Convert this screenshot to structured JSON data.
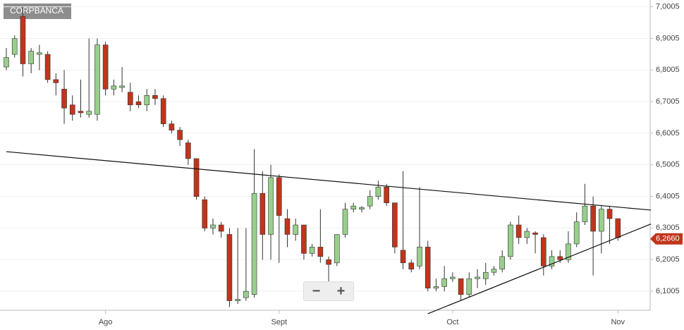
{
  "chart_data": {
    "type": "candlestick",
    "title": "CORPBANCA",
    "categories": [
      null,
      null,
      null,
      null,
      null,
      null,
      null,
      null,
      null,
      null,
      null,
      null,
      "Ago",
      null,
      null,
      null,
      null,
      null,
      null,
      null,
      null,
      null,
      null,
      null,
      null,
      null,
      null,
      null,
      null,
      null,
      null,
      null,
      null,
      "Sept",
      null,
      null,
      null,
      null,
      null,
      null,
      null,
      null,
      null,
      null,
      null,
      null,
      null,
      null,
      null,
      null,
      null,
      null,
      null,
      null,
      "Oct",
      null,
      null,
      null,
      null,
      null,
      null,
      null,
      null,
      null,
      null,
      null,
      null,
      null,
      null,
      null,
      null,
      null,
      null,
      null,
      "Nov"
    ],
    "open": [
      6.81,
      6.85,
      6.97,
      6.82,
      6.85,
      6.85,
      6.77,
      6.74,
      6.69,
      6.67,
      6.66,
      6.66,
      6.88,
      6.74,
      6.745,
      6.73,
      6.7,
      6.69,
      6.72,
      6.71,
      6.63,
      6.61,
      6.57,
      6.52,
      6.39,
      6.3,
      6.31,
      6.28,
      6.07,
      6.08,
      6.09,
      6.41,
      6.28,
      6.46,
      6.33,
      6.28,
      6.31,
      6.22,
      6.24,
      6.2,
      6.19,
      6.28,
      6.36,
      6.36,
      6.37,
      6.4,
      6.43,
      6.38,
      6.23,
      6.19,
      6.18,
      6.24,
      6.11,
      6.115,
      6.14,
      6.14,
      6.09,
      6.14,
      6.14,
      6.16,
      6.17,
      6.21,
      6.31,
      6.27,
      6.285,
      6.27,
      6.18,
      6.21,
      6.2,
      6.25,
      6.32,
      6.37,
      6.29,
      6.36,
      6.33
    ],
    "high": [
      6.87,
      6.91,
      7.0,
      6.87,
      6.88,
      6.86,
      6.79,
      6.8,
      6.72,
      6.77,
      6.9,
      6.9,
      6.89,
      6.77,
      6.81,
      6.76,
      6.72,
      6.74,
      6.74,
      6.72,
      6.64,
      6.62,
      6.58,
      6.52,
      6.4,
      6.33,
      6.32,
      6.3,
      6.3,
      6.3,
      6.55,
      6.48,
      6.5,
      6.47,
      6.36,
      6.33,
      6.31,
      6.25,
      6.36,
      6.21,
      6.28,
      6.38,
      6.38,
      6.37,
      6.42,
      6.45,
      6.44,
      6.38,
      6.48,
      6.2,
      6.43,
      6.26,
      6.14,
      6.18,
      6.16,
      6.14,
      6.16,
      6.17,
      6.19,
      6.18,
      6.23,
      6.32,
      6.34,
      6.3,
      6.29,
      6.28,
      6.23,
      6.23,
      6.29,
      6.35,
      6.44,
      6.4,
      6.37,
      6.37,
      6.33
    ],
    "low": [
      6.8,
      6.84,
      6.78,
      6.79,
      6.8,
      6.76,
      6.72,
      6.63,
      6.64,
      6.65,
      6.65,
      6.64,
      6.72,
      6.72,
      6.73,
      6.67,
      6.68,
      6.67,
      6.69,
      6.62,
      6.6,
      6.56,
      6.5,
      6.39,
      6.29,
      6.28,
      6.27,
      6.05,
      6.06,
      6.07,
      6.08,
      6.2,
      6.2,
      6.19,
      6.24,
      6.26,
      6.2,
      6.21,
      6.19,
      6.11,
      6.18,
      6.27,
      6.35,
      6.35,
      6.36,
      6.39,
      6.37,
      6.22,
      6.17,
      6.16,
      6.17,
      6.1,
      6.1,
      6.1,
      6.13,
      6.07,
      6.08,
      6.11,
      6.12,
      6.15,
      6.16,
      6.2,
      6.25,
      6.25,
      6.22,
      6.15,
      6.17,
      6.19,
      6.19,
      6.24,
      6.31,
      6.15,
      6.22,
      6.25,
      6.26
    ],
    "close": [
      6.84,
      6.9,
      6.82,
      6.86,
      6.855,
      6.77,
      6.76,
      6.68,
      6.66,
      6.665,
      6.67,
      6.88,
      6.74,
      6.75,
      6.75,
      6.69,
      6.69,
      6.72,
      6.71,
      6.63,
      6.61,
      6.58,
      6.52,
      6.4,
      6.3,
      6.31,
      6.29,
      6.07,
      6.075,
      6.1,
      6.41,
      6.28,
      6.46,
      6.34,
      6.28,
      6.31,
      6.22,
      6.24,
      6.21,
      6.185,
      6.28,
      6.36,
      6.37,
      6.365,
      6.4,
      6.43,
      6.38,
      6.24,
      6.19,
      6.17,
      6.24,
      6.11,
      6.115,
      6.14,
      6.145,
      6.09,
      6.14,
      6.145,
      6.16,
      6.17,
      6.21,
      6.31,
      6.27,
      6.29,
      6.28,
      6.18,
      6.21,
      6.2,
      6.25,
      6.32,
      6.37,
      6.29,
      6.36,
      6.33,
      6.27
    ],
    "up_color": "#98cf8b",
    "down_color": "#c0351b",
    "ylim": [
      6.04,
      7.022
    ],
    "yticks": [
      {
        "value": 6.1005,
        "label": "6,1005"
      },
      {
        "value": 6.2005,
        "label": "6,2005"
      },
      {
        "value": 6.3005,
        "label": "6,3005"
      },
      {
        "value": 6.4005,
        "label": "6,4005"
      },
      {
        "value": 6.5005,
        "label": "6,5005"
      },
      {
        "value": 6.6005,
        "label": "6,6005"
      },
      {
        "value": 6.7005,
        "label": "6,7005"
      },
      {
        "value": 6.8005,
        "label": "6,8005"
      },
      {
        "value": 6.9005,
        "label": "6,9005"
      },
      {
        "value": 7.0005,
        "label": "7,0005"
      }
    ],
    "grid": true,
    "trendlines": [
      [
        [
          0,
          6.542
        ],
        [
          78,
          6.357
        ]
      ],
      [
        [
          51,
          6.029
        ],
        [
          78,
          6.313
        ]
      ]
    ],
    "last_price": {
      "value": 6.266,
      "label": "6,2660"
    },
    "zoom_controls": [
      "−",
      "+"
    ]
  }
}
